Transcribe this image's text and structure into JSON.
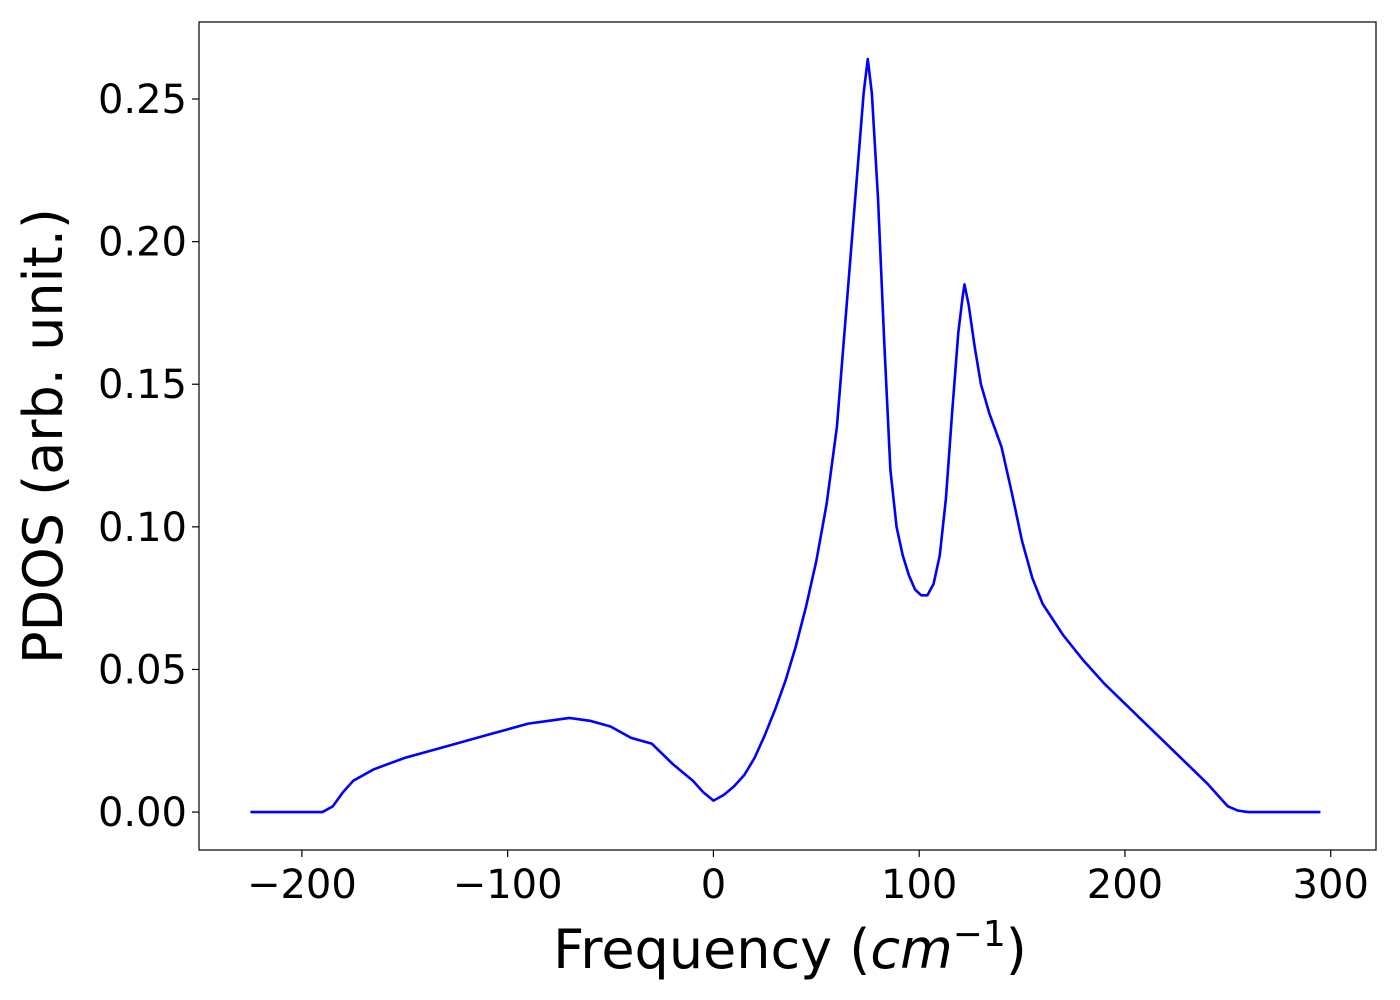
{
  "chart_data": {
    "type": "line",
    "xlabel": [
      "Frequency (",
      "cm",
      "−1",
      ")"
    ],
    "ylabel": "PDOS (arb. unit.)",
    "x": [
      -225,
      -190,
      -185,
      -180,
      -175,
      -165,
      -150,
      -130,
      -110,
      -100,
      -90,
      -80,
      -70,
      -60,
      -50,
      -40,
      -30,
      -20,
      -10,
      -5,
      0,
      5,
      10,
      15,
      20,
      25,
      30,
      35,
      40,
      45,
      50,
      55,
      60,
      65,
      70,
      73,
      75,
      77,
      80,
      83,
      86,
      89,
      92,
      95,
      98,
      101,
      104,
      107,
      110,
      113,
      116,
      119,
      121,
      122,
      124,
      127,
      130,
      134,
      140,
      145,
      150,
      155,
      160,
      170,
      180,
      190,
      200,
      210,
      220,
      230,
      240,
      245,
      250,
      255,
      260,
      295
    ],
    "series": [
      {
        "name": "PDOS",
        "color": "#0000ff",
        "values": [
          0,
          0,
          0.002,
          0.007,
          0.011,
          0.015,
          0.019,
          0.023,
          0.027,
          0.029,
          0.031,
          0.032,
          0.033,
          0.032,
          0.03,
          0.026,
          0.024,
          0.017,
          0.011,
          0.007,
          0.004,
          0.006,
          0.009,
          0.013,
          0.019,
          0.027,
          0.036,
          0.046,
          0.058,
          0.072,
          0.088,
          0.108,
          0.135,
          0.18,
          0.225,
          0.252,
          0.264,
          0.252,
          0.215,
          0.165,
          0.12,
          0.1,
          0.09,
          0.083,
          0.078,
          0.076,
          0.076,
          0.08,
          0.09,
          0.11,
          0.14,
          0.168,
          0.18,
          0.185,
          0.178,
          0.163,
          0.15,
          0.14,
          0.128,
          0.112,
          0.095,
          0.082,
          0.073,
          0.062,
          0.053,
          0.045,
          0.038,
          0.031,
          0.024,
          0.017,
          0.01,
          0.006,
          0.002,
          0.0005,
          0,
          0
        ]
      }
    ],
    "xlim": [
      -250,
      322
    ],
    "ylim": [
      -0.0133,
      0.277
    ],
    "xticks": [
      {
        "value": -200,
        "label": "−200"
      },
      {
        "value": -100,
        "label": "−100"
      },
      0,
      100,
      200,
      300
    ],
    "yticks": [
      {
        "value": 0,
        "label": "0.00"
      },
      {
        "value": 0.05,
        "label": "0.05"
      },
      {
        "value": 0.1,
        "label": "0.10"
      },
      {
        "value": 0.15,
        "label": "0.15"
      },
      {
        "value": 0.2,
        "label": "0.20"
      },
      {
        "value": 0.25,
        "label": "0.25"
      }
    ]
  }
}
